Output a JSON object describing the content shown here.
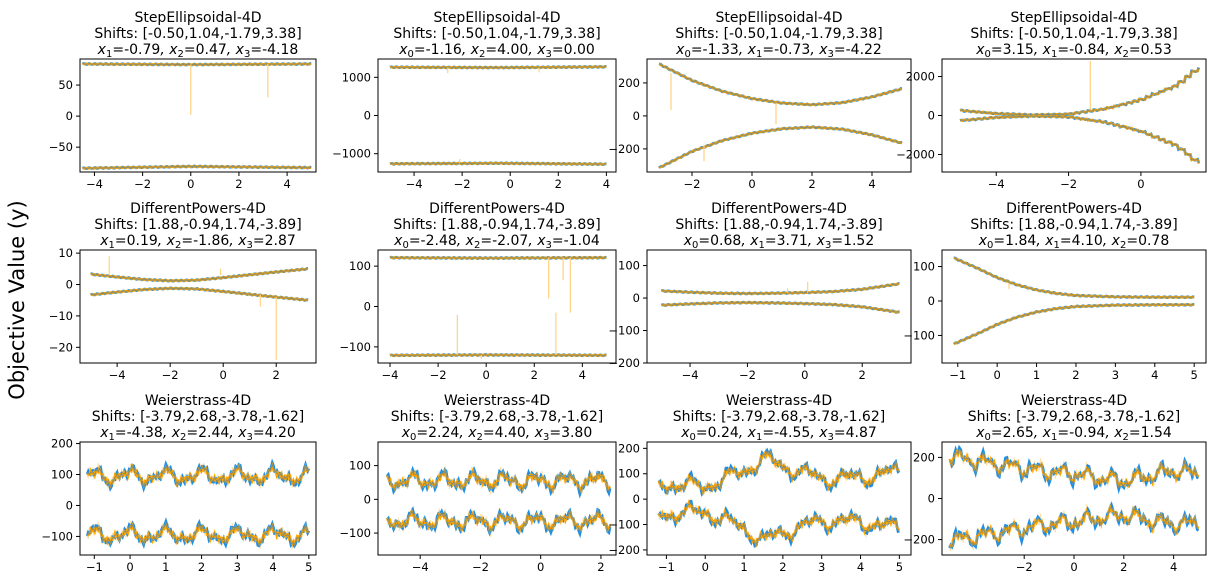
{
  "figure": {
    "ylabel": "Objective Value (y)"
  },
  "colors": {
    "series_a": "#1f8fe6",
    "series_b": "#ffa500",
    "series_b_faint": "#ffd27f",
    "mean": "#8c8c6a"
  },
  "chart_data": [
    {
      "type": "line",
      "title": "StepEllipsoidal-4D",
      "subtitle": "Shifts: [-0.50,1.04,-1.79,3.38]",
      "fixed": "x1=-0.79, x2=0.47, x3=-4.18",
      "xlim": [
        -4.6,
        5.2
      ],
      "ylim": [
        -90,
        92
      ],
      "xticks": [
        -4,
        -2,
        0,
        2,
        4
      ],
      "yticks": [
        -50,
        0,
        50
      ],
      "series": [
        {
          "x": [
            -4.5,
            0,
            5
          ],
          "y": [
            84,
            83,
            84
          ]
        },
        {
          "x": [
            -4.5,
            0,
            5
          ],
          "y": [
            -84,
            -81,
            -83
          ]
        }
      ],
      "spikes": [
        {
          "x": 0,
          "y0": 83,
          "y1": 2
        },
        {
          "x": 3.2,
          "y0": 84,
          "y1": 30
        }
      ]
    },
    {
      "type": "line",
      "title": "StepEllipsoidal-4D",
      "subtitle": "Shifts: [-0.50,1.04,-1.79,3.38]",
      "fixed": "x0=-1.16, x2=4.00, x3=0.00",
      "xlim": [
        -5.5,
        4.4
      ],
      "ylim": [
        -1480,
        1480
      ],
      "xticks": [
        -4,
        -2,
        0,
        2,
        4
      ],
      "yticks": [
        -1000,
        0,
        1000
      ],
      "series": [
        {
          "x": [
            -5,
            -0.5,
            4
          ],
          "y": [
            1265,
            1255,
            1275
          ]
        },
        {
          "x": [
            -5,
            -0.5,
            4
          ],
          "y": [
            -1265,
            -1250,
            -1275
          ]
        }
      ],
      "spikes": [
        {
          "x": -2.6,
          "y0": 1255,
          "y1": 1110
        },
        {
          "x": 1.2,
          "y0": 1258,
          "y1": 1130
        },
        {
          "x": -2.1,
          "y0": -1250,
          "y1": -1140
        }
      ]
    },
    {
      "type": "line",
      "title": "StepEllipsoidal-4D",
      "subtitle": "Shifts: [-0.50,1.04,-1.79,3.38]",
      "fixed": "x0=-1.33, x1=-0.73, x3=-4.22",
      "xlim": [
        -3.5,
        5.3
      ],
      "ylim": [
        -340,
        345
      ],
      "xticks": [
        -2,
        0,
        2,
        4
      ],
      "yticks": [
        -200,
        0,
        200
      ],
      "series": [
        {
          "x": [
            -3.1,
            -2,
            -1,
            0,
            1,
            2,
            3,
            4,
            5
          ],
          "y": [
            315,
            215,
            150,
            105,
            78,
            68,
            80,
            115,
            165
          ]
        },
        {
          "x": [
            -3.1,
            -2,
            -1,
            0,
            1,
            2,
            3,
            4,
            5
          ],
          "y": [
            -315,
            -215,
            -150,
            -105,
            -78,
            -68,
            -80,
            -115,
            -165
          ]
        }
      ],
      "spikes": [
        {
          "x": -2.7,
          "y0": 260,
          "y1": 35
        },
        {
          "x": 0.8,
          "y0": 80,
          "y1": -50
        },
        {
          "x": -1.6,
          "y0": -175,
          "y1": -275
        }
      ]
    },
    {
      "type": "line",
      "title": "StepEllipsoidal-4D",
      "subtitle": "Shifts: [-0.50,1.04,-1.79,3.38]",
      "fixed": "x0=3.15, x1=-0.84, x2=0.53",
      "xlim": [
        -5.5,
        1.8
      ],
      "ylim": [
        -2900,
        2900
      ],
      "xticks": [
        -4,
        -2,
        0
      ],
      "yticks": [
        -2000,
        0,
        2000
      ],
      "series": [
        {
          "x": [
            -5,
            -4,
            -3,
            -2,
            -1,
            0,
            1,
            1.6
          ],
          "y": [
            260,
            100,
            30,
            70,
            340,
            800,
            1550,
            2450
          ]
        },
        {
          "x": [
            -5,
            -4,
            -3,
            -2,
            -1,
            0,
            1,
            1.6
          ],
          "y": [
            -260,
            -100,
            -30,
            -70,
            -340,
            -800,
            -1550,
            -2450
          ]
        }
      ],
      "spikes": [
        {
          "x": -1.4,
          "y0": 300,
          "y1": 2800
        }
      ]
    },
    {
      "type": "line",
      "title": "DifferentPowers-4D",
      "subtitle": "Shifts: [1.88,-0.94,1.74,-3.89]",
      "fixed": "x1=0.19, x2=-1.86, x3=2.87",
      "xlim": [
        -5.4,
        3.5
      ],
      "ylim": [
        -25,
        11
      ],
      "xticks": [
        -4,
        -2,
        0,
        2
      ],
      "yticks": [
        -20,
        -10,
        0,
        10
      ],
      "series": [
        {
          "x": [
            -5,
            -4,
            -3,
            -2,
            -1,
            0,
            1,
            2,
            3.2
          ],
          "y": [
            3.3,
            2.4,
            1.6,
            1.2,
            1.4,
            2.2,
            3.1,
            4,
            5
          ]
        },
        {
          "x": [
            -5,
            -4,
            -3,
            -2,
            -1,
            0,
            1,
            2,
            3.2
          ],
          "y": [
            -3.3,
            -2.4,
            -1.6,
            -1.2,
            -1.4,
            -2.2,
            -3.1,
            -4,
            -5
          ]
        }
      ],
      "spikes": [
        {
          "x": 2.0,
          "y0": -4,
          "y1": -24
        },
        {
          "x": 1.4,
          "y0": -3.3,
          "y1": -7
        },
        {
          "x": -0.1,
          "y0": 3,
          "y1": 5
        },
        {
          "x": -4.3,
          "y0": 3,
          "y1": 9
        }
      ]
    },
    {
      "type": "line",
      "title": "DifferentPowers-4D",
      "subtitle": "Shifts: [1.88,-0.94,1.74,-3.89]",
      "fixed": "x0=-2.48, x2=-2.07, x3=-1.04",
      "xlim": [
        -4.5,
        5.4
      ],
      "ylim": [
        -140,
        140
      ],
      "xticks": [
        -4,
        -2,
        0,
        2,
        4
      ],
      "yticks": [
        -100,
        0,
        100
      ],
      "series": [
        {
          "x": [
            -4,
            0,
            5
          ],
          "y": [
            121,
            120,
            121
          ]
        },
        {
          "x": [
            -4,
            0,
            5
          ],
          "y": [
            -121,
            -120,
            -121
          ]
        }
      ],
      "spikes": [
        {
          "x": -1.2,
          "y0": -120,
          "y1": -20
        },
        {
          "x": 2.9,
          "y0": -120,
          "y1": -15
        },
        {
          "x": 2.6,
          "y0": 121,
          "y1": 20
        },
        {
          "x": 3.2,
          "y0": 121,
          "y1": 65
        },
        {
          "x": 3.5,
          "y0": 121,
          "y1": -15
        },
        {
          "x": -0.2,
          "y0": -120,
          "y1": -130
        }
      ]
    },
    {
      "type": "line",
      "title": "DifferentPowers-4D",
      "subtitle": "Shifts: [1.88,-0.94,1.74,-3.89]",
      "fixed": "x0=0.68, x1=3.71, x3=1.52",
      "xlim": [
        -5.5,
        3.7
      ],
      "ylim": [
        -200,
        148
      ],
      "xticks": [
        -4,
        -2,
        0,
        2
      ],
      "yticks": [
        -200,
        -100,
        0,
        100
      ],
      "series": [
        {
          "x": [
            -5,
            -4,
            -3,
            -2,
            -1,
            0,
            1,
            2,
            3.3
          ],
          "y": [
            22,
            18,
            15,
            14,
            15,
            17,
            20,
            27,
            44
          ]
        },
        {
          "x": [
            -5,
            -4,
            -3,
            -2,
            -1,
            0,
            1,
            2,
            3.3
          ],
          "y": [
            -22,
            -18,
            -15,
            -14,
            -15,
            -17,
            -20,
            -27,
            -44
          ]
        }
      ],
      "spikes": [
        {
          "x": 0.1,
          "y0": 17,
          "y1": 50
        },
        {
          "x": -0.6,
          "y0": 16,
          "y1": 30
        }
      ]
    },
    {
      "type": "line",
      "title": "DifferentPowers-4D",
      "subtitle": "Shifts: [1.88,-0.94,1.74,-3.89]",
      "fixed": "x0=1.84, x1=4.10, x2=0.78",
      "xlim": [
        -1.4,
        5.3
      ],
      "ylim": [
        -180,
        148
      ],
      "xticks": [
        -1,
        0,
        1,
        2,
        3,
        4,
        5
      ],
      "yticks": [
        -100,
        0,
        100
      ],
      "series": [
        {
          "x": [
            -1.1,
            -0.5,
            0,
            0.5,
            1,
            1.5,
            2,
            3,
            4,
            5
          ],
          "y": [
            125,
            95,
            68,
            47,
            32,
            22,
            16,
            12,
            11,
            11
          ]
        },
        {
          "x": [
            -1.1,
            -0.5,
            0,
            0.5,
            1,
            1.5,
            2,
            3,
            4,
            5
          ],
          "y": [
            -125,
            -95,
            -68,
            -47,
            -32,
            -22,
            -16,
            -12,
            -11,
            -11
          ]
        }
      ],
      "spikes": [
        {
          "x": 0.3,
          "y0": 52,
          "y1": 35
        }
      ]
    },
    {
      "type": "line",
      "title": "Weierstrass-4D",
      "subtitle": "Shifts: [-3.79,2.68,-3.78,-1.62]",
      "fixed": "x1=-4.38, x2=2.44, x3=4.20",
      "xlim": [
        -1.4,
        5.2
      ],
      "ylim": [
        -160,
        205
      ],
      "xticks": [
        -1,
        0,
        1,
        2,
        3,
        4,
        5
      ],
      "yticks": [
        -100,
        0,
        100,
        200
      ],
      "series": [
        {
          "x": [
            -1.2,
            5
          ],
          "y": [
            95,
            95
          ]
        },
        {
          "x": [
            -1.2,
            5
          ],
          "y": [
            -95,
            -95
          ]
        }
      ],
      "spikes": []
    },
    {
      "type": "line",
      "title": "Weierstrass-4D",
      "subtitle": "Shifts: [-3.79,2.68,-3.78,-1.62]",
      "fixed": "x0=2.24, x2=4.40, x3=3.80",
      "xlim": [
        -5.4,
        2.5
      ],
      "ylim": [
        -165,
        170
      ],
      "xticks": [
        -4,
        -2,
        0,
        2
      ],
      "yticks": [
        -100,
        0,
        100
      ],
      "series": [
        {
          "x": [
            -5.1,
            2.3
          ],
          "y": [
            55,
            55
          ]
        },
        {
          "x": [
            -5.1,
            2.3
          ],
          "y": [
            -65,
            -65
          ]
        }
      ],
      "spikes": []
    },
    {
      "type": "line",
      "title": "Weierstrass-4D",
      "subtitle": "Shifts: [-3.79,2.68,-3.78,-1.62]",
      "fixed": "x0=0.24, x1=-4.55, x3=4.87",
      "xlim": [
        -1.5,
        5.3
      ],
      "ylim": [
        -220,
        225
      ],
      "xticks": [
        -1,
        0,
        1,
        2,
        3,
        4,
        5
      ],
      "yticks": [
        -200,
        -100,
        0,
        100,
        200
      ],
      "series": [
        {
          "x": [
            -1.2,
            0,
            1,
            1.5,
            2,
            3,
            4,
            5
          ],
          "y": [
            60,
            50,
            110,
            160,
            130,
            80,
            85,
            110
          ]
        },
        {
          "x": [
            -1.2,
            0,
            1,
            1.5,
            2,
            3,
            4,
            5
          ],
          "y": [
            -60,
            -50,
            -115,
            -165,
            -130,
            -85,
            -90,
            -115
          ]
        }
      ],
      "spikes": []
    },
    {
      "type": "line",
      "title": "Weierstrass-4D",
      "subtitle": "Shifts: [-3.79,2.68,-3.78,-1.62]",
      "fixed": "x0=2.65, x1=-0.94, x2=1.54",
      "xlim": [
        -5.3,
        5.3
      ],
      "ylim": [
        -275,
        275
      ],
      "xticks": [
        -2,
        0,
        2,
        4
      ],
      "yticks": [
        -200,
        0,
        200
      ],
      "series": [
        {
          "x": [
            -5,
            -3,
            -1,
            0,
            1,
            2,
            3,
            4,
            5
          ],
          "y": [
            205,
            165,
            130,
            120,
            100,
            85,
            110,
            135,
            120
          ]
        },
        {
          "x": [
            -5,
            -3,
            -1,
            0,
            1,
            2,
            3,
            4,
            5
          ],
          "y": [
            -205,
            -165,
            -125,
            -115,
            -95,
            -80,
            -105,
            -125,
            -120
          ]
        }
      ],
      "spikes": []
    }
  ]
}
